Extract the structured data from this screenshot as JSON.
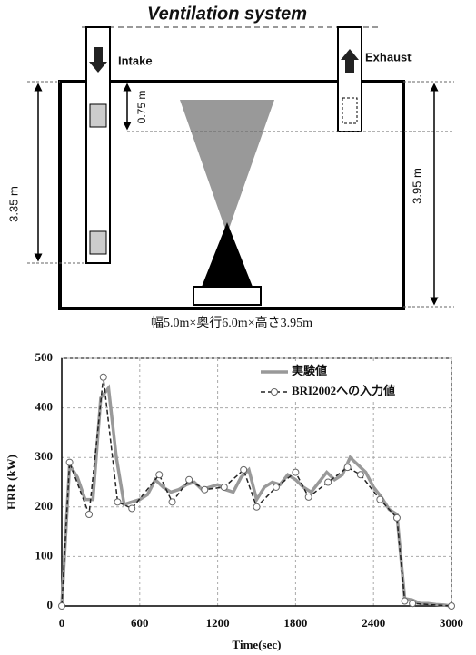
{
  "diagram": {
    "title": "Ventilation system",
    "intake_label": "Intake",
    "exhaust_label": "Exhaust",
    "dim_top": "0.75 m",
    "dim_left": "3.35 m",
    "dim_right": "3.95 m",
    "caption": "幅5.0m×奥行6.0m×高さ3.95m"
  },
  "chart_data": {
    "type": "line",
    "x_label": "Time(sec)",
    "y_label": "HRR (kW)",
    "xlim": [
      0,
      3000
    ],
    "xticks": [
      0,
      600,
      1200,
      1800,
      2400,
      3000
    ],
    "ylim": [
      0,
      500
    ],
    "yticks": [
      0,
      100,
      200,
      300,
      400,
      500
    ],
    "grid": true,
    "legend": "upper right",
    "series": [
      {
        "name": "実験値",
        "color": "#999999",
        "style": "solid",
        "x": [
          0,
          60,
          120,
          180,
          240,
          300,
          360,
          420,
          480,
          540,
          600,
          660,
          720,
          780,
          840,
          900,
          960,
          1020,
          1080,
          1140,
          1200,
          1260,
          1320,
          1380,
          1440,
          1500,
          1560,
          1620,
          1680,
          1740,
          1800,
          1860,
          1920,
          1980,
          2040,
          2100,
          2160,
          2220,
          2280,
          2340,
          2400,
          2460,
          2520,
          2580,
          2640,
          2700,
          2760,
          2820,
          2880,
          2940,
          3000
        ],
        "values": [
          0,
          285,
          260,
          215,
          215,
          420,
          440,
          300,
          205,
          210,
          215,
          225,
          255,
          240,
          230,
          235,
          245,
          250,
          235,
          240,
          245,
          235,
          230,
          260,
          275,
          215,
          240,
          250,
          245,
          265,
          255,
          240,
          230,
          250,
          270,
          255,
          265,
          300,
          285,
          270,
          240,
          220,
          195,
          185,
          15,
          12,
          5,
          5,
          3,
          2,
          0
        ]
      },
      {
        "name": "BRI2002への入力値",
        "color": "#222222",
        "style": "dashed",
        "x": [
          0,
          60,
          210,
          320,
          430,
          540,
          750,
          850,
          980,
          1100,
          1250,
          1400,
          1500,
          1650,
          1800,
          1900,
          2050,
          2200,
          2300,
          2450,
          2580,
          2640,
          2700,
          3000
        ],
        "values": [
          0,
          290,
          185,
          462,
          210,
          197,
          265,
          210,
          255,
          235,
          240,
          275,
          200,
          240,
          270,
          220,
          250,
          280,
          265,
          215,
          178,
          10,
          5,
          0
        ]
      }
    ]
  }
}
